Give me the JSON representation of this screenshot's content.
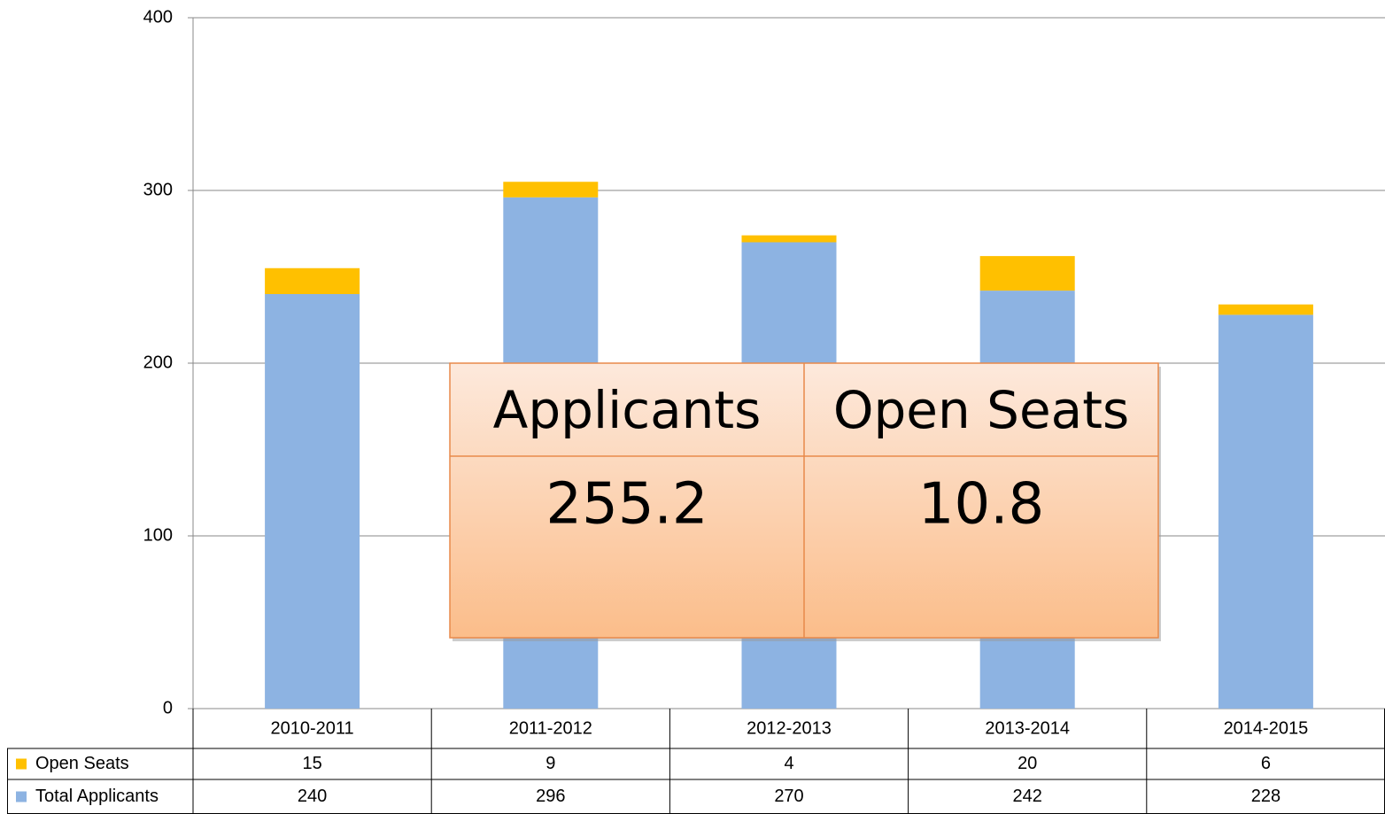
{
  "chart_data": {
    "type": "stacked_bar",
    "categories": [
      "2010-2011",
      "2011-2012",
      "2012-2013",
      "2013-2014",
      "2014-2015"
    ],
    "series": [
      {
        "name": "Total Applicants",
        "color": "#8db3e2",
        "values": [
          240,
          296,
          270,
          242,
          228
        ]
      },
      {
        "name": "Open Seats",
        "color": "#ffc000",
        "values": [
          15,
          9,
          4,
          20,
          6
        ]
      }
    ],
    "ylim": [
      0,
      400
    ],
    "yticks": [
      0,
      100,
      200,
      300,
      400
    ],
    "grid": true,
    "data_table": true
  },
  "overlay": {
    "headers": [
      "Applicants",
      "Open Seats"
    ],
    "values": [
      255.2,
      10.8
    ]
  }
}
